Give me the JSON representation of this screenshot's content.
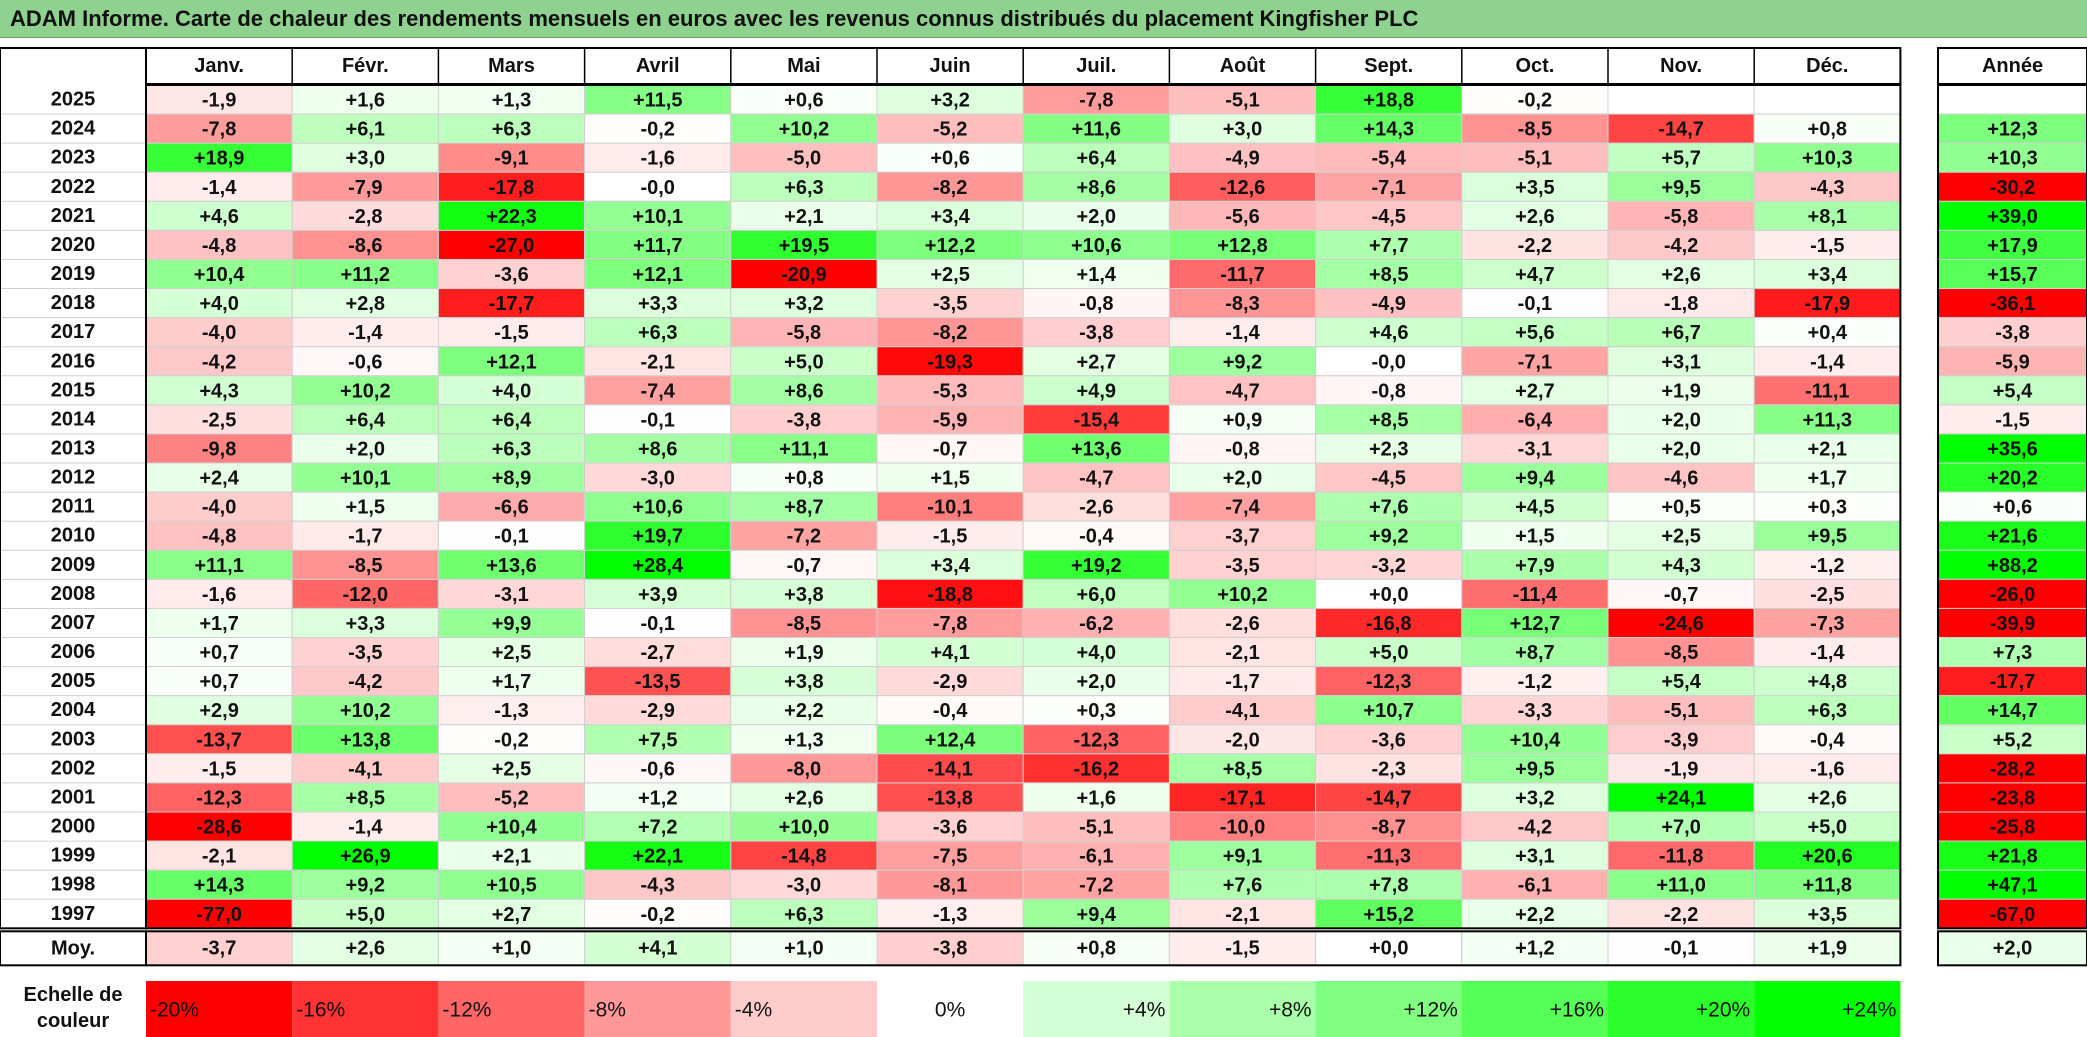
{
  "title": "ADAM Informe. Carte de chaleur des rendements mensuels en euros avec les revenus connus distribués du placement Kingfisher PLC",
  "chart_data": {
    "type": "heatmap",
    "columns": [
      "Janv.",
      "Févr.",
      "Mars",
      "Avril",
      "Mai",
      "Juin",
      "Juil.",
      "Août",
      "Sept.",
      "Oct.",
      "Nov.",
      "Déc."
    ],
    "annual_header": "Année",
    "rows": [
      {
        "year": "2025",
        "values": [
          "-1,9",
          "+1,6",
          "+1,3",
          "+11,5",
          "+0,6",
          "+3,2",
          "-7,8",
          "-5,1",
          "+18,8",
          "-0,2",
          "",
          ""
        ],
        "annual": ""
      },
      {
        "year": "2024",
        "values": [
          "-7,8",
          "+6,1",
          "+6,3",
          "-0,2",
          "+10,2",
          "-5,2",
          "+11,6",
          "+3,0",
          "+14,3",
          "-8,5",
          "-14,7",
          "+0,8"
        ],
        "annual": "+12,3"
      },
      {
        "year": "2023",
        "values": [
          "+18,9",
          "+3,0",
          "-9,1",
          "-1,6",
          "-5,0",
          "+0,6",
          "+6,4",
          "-4,9",
          "-5,4",
          "-5,1",
          "+5,7",
          "+10,3"
        ],
        "annual": "+10,3"
      },
      {
        "year": "2022",
        "values": [
          "-1,4",
          "-7,9",
          "-17,8",
          "-0,0",
          "+6,3",
          "-8,2",
          "+8,6",
          "-12,6",
          "-7,1",
          "+3,5",
          "+9,5",
          "-4,3"
        ],
        "annual": "-30,2"
      },
      {
        "year": "2021",
        "values": [
          "+4,6",
          "-2,8",
          "+22,3",
          "+10,1",
          "+2,1",
          "+3,4",
          "+2,0",
          "-5,6",
          "-4,5",
          "+2,6",
          "-5,8",
          "+8,1"
        ],
        "annual": "+39,0"
      },
      {
        "year": "2020",
        "values": [
          "-4,8",
          "-8,6",
          "-27,0",
          "+11,7",
          "+19,5",
          "+12,2",
          "+10,6",
          "+12,8",
          "+7,7",
          "-2,2",
          "-4,2",
          "-1,5"
        ],
        "annual": "+17,9"
      },
      {
        "year": "2019",
        "values": [
          "+10,4",
          "+11,2",
          "-3,6",
          "+12,1",
          "-20,9",
          "+2,5",
          "+1,4",
          "-11,7",
          "+8,5",
          "+4,7",
          "+2,6",
          "+3,4"
        ],
        "annual": "+15,7"
      },
      {
        "year": "2018",
        "values": [
          "+4,0",
          "+2,8",
          "-17,7",
          "+3,3",
          "+3,2",
          "-3,5",
          "-0,8",
          "-8,3",
          "-4,9",
          "-0,1",
          "-1,8",
          "-17,9"
        ],
        "annual": "-36,1"
      },
      {
        "year": "2017",
        "values": [
          "-4,0",
          "-1,4",
          "-1,5",
          "+6,3",
          "-5,8",
          "-8,2",
          "-3,8",
          "-1,4",
          "+4,6",
          "+5,6",
          "+6,7",
          "+0,4"
        ],
        "annual": "-3,8"
      },
      {
        "year": "2016",
        "values": [
          "-4,2",
          "-0,6",
          "+12,1",
          "-2,1",
          "+5,0",
          "-19,3",
          "+2,7",
          "+9,2",
          "-0,0",
          "-7,1",
          "+3,1",
          "-1,4"
        ],
        "annual": "-5,9"
      },
      {
        "year": "2015",
        "values": [
          "+4,3",
          "+10,2",
          "+4,0",
          "-7,4",
          "+8,6",
          "-5,3",
          "+4,9",
          "-4,7",
          "-0,8",
          "+2,7",
          "+1,9",
          "-11,1"
        ],
        "annual": "+5,4"
      },
      {
        "year": "2014",
        "values": [
          "-2,5",
          "+6,4",
          "+6,4",
          "-0,1",
          "-3,8",
          "-5,9",
          "-15,4",
          "+0,9",
          "+8,5",
          "-6,4",
          "+2,0",
          "+11,3"
        ],
        "annual": "-1,5"
      },
      {
        "year": "2013",
        "values": [
          "-9,8",
          "+2,0",
          "+6,3",
          "+8,6",
          "+11,1",
          "-0,7",
          "+13,6",
          "-0,8",
          "+2,3",
          "-3,1",
          "+2,0",
          "+2,1"
        ],
        "annual": "+35,6"
      },
      {
        "year": "2012",
        "values": [
          "+2,4",
          "+10,1",
          "+8,9",
          "-3,0",
          "+0,8",
          "+1,5",
          "-4,7",
          "+2,0",
          "-4,5",
          "+9,4",
          "-4,6",
          "+1,7"
        ],
        "annual": "+20,2"
      },
      {
        "year": "2011",
        "values": [
          "-4,0",
          "+1,5",
          "-6,6",
          "+10,6",
          "+8,7",
          "-10,1",
          "-2,6",
          "-7,4",
          "+7,6",
          "+4,5",
          "+0,5",
          "+0,3"
        ],
        "annual": "+0,6"
      },
      {
        "year": "2010",
        "values": [
          "-4,8",
          "-1,7",
          "-0,1",
          "+19,7",
          "-7,2",
          "-1,5",
          "-0,4",
          "-3,7",
          "+9,2",
          "+1,5",
          "+2,5",
          "+9,5"
        ],
        "annual": "+21,6"
      },
      {
        "year": "2009",
        "values": [
          "+11,1",
          "-8,5",
          "+13,6",
          "+28,4",
          "-0,7",
          "+3,4",
          "+19,2",
          "-3,5",
          "-3,2",
          "+7,9",
          "+4,3",
          "-1,2"
        ],
        "annual": "+88,2"
      },
      {
        "year": "2008",
        "values": [
          "-1,6",
          "-12,0",
          "-3,1",
          "+3,9",
          "+3,8",
          "-18,8",
          "+6,0",
          "+10,2",
          "+0,0",
          "-11,4",
          "-0,7",
          "-2,5"
        ],
        "annual": "-26,0"
      },
      {
        "year": "2007",
        "values": [
          "+1,7",
          "+3,3",
          "+9,9",
          "-0,1",
          "-8,5",
          "-7,8",
          "-6,2",
          "-2,6",
          "-16,8",
          "+12,7",
          "-24,6",
          "-7,3"
        ],
        "annual": "-39,9"
      },
      {
        "year": "2006",
        "values": [
          "+0,7",
          "-3,5",
          "+2,5",
          "-2,7",
          "+1,9",
          "+4,1",
          "+4,0",
          "-2,1",
          "+5,0",
          "+8,7",
          "-8,5",
          "-1,4"
        ],
        "annual": "+7,3"
      },
      {
        "year": "2005",
        "values": [
          "+0,7",
          "-4,2",
          "+1,7",
          "-13,5",
          "+3,8",
          "-2,9",
          "+2,0",
          "-1,7",
          "-12,3",
          "-1,2",
          "+5,4",
          "+4,8"
        ],
        "annual": "-17,7"
      },
      {
        "year": "2004",
        "values": [
          "+2,9",
          "+10,2",
          "-1,3",
          "-2,9",
          "+2,2",
          "-0,4",
          "+0,3",
          "-4,1",
          "+10,7",
          "-3,3",
          "-5,1",
          "+6,3"
        ],
        "annual": "+14,7"
      },
      {
        "year": "2003",
        "values": [
          "-13,7",
          "+13,8",
          "-0,2",
          "+7,5",
          "+1,3",
          "+12,4",
          "-12,3",
          "-2,0",
          "-3,6",
          "+10,4",
          "-3,9",
          "-0,4"
        ],
        "annual": "+5,2"
      },
      {
        "year": "2002",
        "values": [
          "-1,5",
          "-4,1",
          "+2,5",
          "-0,6",
          "-8,0",
          "-14,1",
          "-16,2",
          "+8,5",
          "-2,3",
          "+9,5",
          "-1,9",
          "-1,6"
        ],
        "annual": "-28,2"
      },
      {
        "year": "2001",
        "values": [
          "-12,3",
          "+8,5",
          "-5,2",
          "+1,2",
          "+2,6",
          "-13,8",
          "+1,6",
          "-17,1",
          "-14,7",
          "+3,2",
          "+24,1",
          "+2,6"
        ],
        "annual": "-23,8"
      },
      {
        "year": "2000",
        "values": [
          "-28,6",
          "-1,4",
          "+10,4",
          "+7,2",
          "+10,0",
          "-3,6",
          "-5,1",
          "-10,0",
          "-8,7",
          "-4,2",
          "+7,0",
          "+5,0"
        ],
        "annual": "-25,8"
      },
      {
        "year": "1999",
        "values": [
          "-2,1",
          "+26,9",
          "+2,1",
          "+22,1",
          "-14,8",
          "-7,5",
          "-6,1",
          "+9,1",
          "-11,3",
          "+3,1",
          "-11,8",
          "+20,6"
        ],
        "annual": "+21,8"
      },
      {
        "year": "1998",
        "values": [
          "+14,3",
          "+9,2",
          "+10,5",
          "-4,3",
          "-3,0",
          "-8,1",
          "-7,2",
          "+7,6",
          "+7,8",
          "-6,1",
          "+11,0",
          "+11,8"
        ],
        "annual": "+47,1"
      },
      {
        "year": "1997",
        "values": [
          "-77,0",
          "+5,0",
          "+2,7",
          "-0,2",
          "+6,3",
          "-1,3",
          "+9,4",
          "-2,1",
          "+15,2",
          "+2,2",
          "-2,2",
          "+3,5"
        ],
        "annual": "-67,0"
      }
    ],
    "average": {
      "label": "Moy.",
      "values": [
        "-3,7",
        "+2,6",
        "+1,0",
        "+4,1",
        "+1,0",
        "-3,8",
        "+0,8",
        "-1,5",
        "+0,0",
        "+1,2",
        "-0,1",
        "+1,9"
      ],
      "annual": "+2,0"
    },
    "legend": {
      "label_line1": "Echelle de",
      "label_line2": "couleur",
      "stops": [
        {
          "label": "-20%",
          "value": -20
        },
        {
          "label": "-16%",
          "value": -16
        },
        {
          "label": "-12%",
          "value": -12
        },
        {
          "label": "-8%",
          "value": -8
        },
        {
          "label": "-4%",
          "value": -4
        },
        {
          "label": "0%",
          "value": 0
        },
        {
          "label": "+4%",
          "value": 4
        },
        {
          "label": "+8%",
          "value": 8
        },
        {
          "label": "+12%",
          "value": 12
        },
        {
          "label": "+16%",
          "value": 16
        },
        {
          "label": "+20%",
          "value": 20
        },
        {
          "label": "+24%",
          "value": 24
        }
      ]
    },
    "colors": {
      "negative": "#ff0000",
      "neutral": "#ffffff",
      "positive": "#00ff00",
      "title_bg": "#8fd18f"
    }
  }
}
